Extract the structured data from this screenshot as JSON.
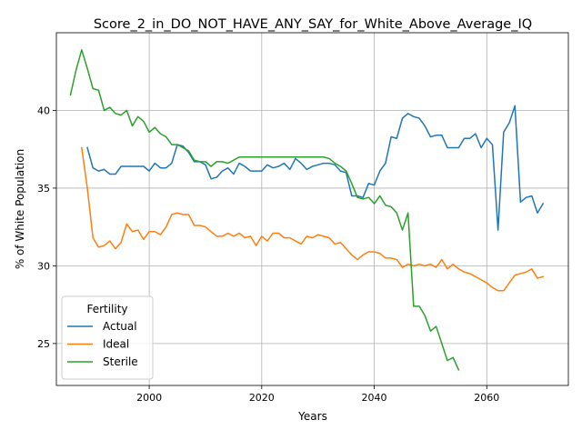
{
  "chart_data": {
    "type": "line",
    "title": "Score_2_in_DO_NOT_HAVE_ANY_SAY_for_White_Above_Average_IQ",
    "xlabel": "Years",
    "ylabel": "% of White Population",
    "xlim": [
      1983.5,
      2074.5
    ],
    "ylim": [
      22.3,
      45.0
    ],
    "xticks": [
      2000,
      2020,
      2040,
      2060
    ],
    "yticks": [
      25,
      30,
      35,
      40
    ],
    "grid": true,
    "legend": {
      "title": "Fertility",
      "position": "lower left"
    },
    "series": [
      {
        "name": "Actual",
        "color": "#1f77b4",
        "x": [
          1989,
          1990,
          1991,
          1992,
          1993,
          1994,
          1995,
          1996,
          1997,
          1998,
          1999,
          2000,
          2001,
          2002,
          2003,
          2004,
          2005,
          2006,
          2007,
          2008,
          2009,
          2010,
          2011,
          2012,
          2013,
          2014,
          2015,
          2016,
          2017,
          2018,
          2019,
          2020,
          2021,
          2022,
          2023,
          2024,
          2025,
          2026,
          2027,
          2028,
          2029,
          2030,
          2031,
          2032,
          2033,
          2034,
          2035,
          2036,
          2037,
          2038,
          2039,
          2040,
          2041,
          2042,
          2043,
          2044,
          2045,
          2046,
          2047,
          2048,
          2049,
          2050,
          2051,
          2052,
          2053,
          2054,
          2055,
          2056,
          2057,
          2058,
          2059,
          2060,
          2061,
          2062,
          2063,
          2064,
          2065,
          2066,
          2067,
          2068,
          2069,
          2070
        ],
        "y": [
          37.6,
          36.3,
          36.1,
          36.2,
          35.9,
          35.9,
          36.4,
          36.4,
          36.4,
          36.4,
          36.4,
          36.1,
          36.6,
          36.3,
          36.3,
          36.6,
          37.8,
          37.7,
          37.3,
          36.7,
          36.7,
          36.5,
          35.6,
          35.7,
          36.1,
          36.3,
          35.9,
          36.6,
          36.4,
          36.1,
          36.1,
          36.1,
          36.5,
          36.3,
          36.4,
          36.6,
          36.2,
          36.9,
          36.6,
          36.2,
          36.4,
          36.5,
          36.6,
          36.6,
          36.5,
          36.1,
          36.0,
          34.5,
          34.5,
          34.4,
          35.3,
          35.2,
          36.1,
          36.6,
          38.3,
          38.2,
          39.5,
          39.8,
          39.6,
          39.5,
          39.0,
          38.3,
          38.4,
          38.4,
          37.6,
          37.6,
          37.6,
          38.2,
          38.2,
          38.5,
          37.6,
          38.2,
          37.8,
          32.3,
          38.6,
          39.2,
          40.3,
          34.1,
          34.4,
          34.5,
          33.4,
          34.0
        ]
      },
      {
        "name": "Ideal",
        "color": "#ff7f0e",
        "x": [
          1988,
          1989,
          1990,
          1991,
          1992,
          1993,
          1994,
          1995,
          1996,
          1997,
          1998,
          1999,
          2000,
          2001,
          2002,
          2003,
          2004,
          2005,
          2006,
          2007,
          2008,
          2009,
          2010,
          2011,
          2012,
          2013,
          2014,
          2015,
          2016,
          2017,
          2018,
          2019,
          2020,
          2021,
          2022,
          2023,
          2024,
          2025,
          2026,
          2027,
          2028,
          2029,
          2030,
          2031,
          2032,
          2033,
          2034,
          2035,
          2036,
          2037,
          2038,
          2039,
          2040,
          2041,
          2042,
          2043,
          2044,
          2045,
          2046,
          2047,
          2048,
          2049,
          2050,
          2051,
          2052,
          2053,
          2054,
          2055,
          2056,
          2057,
          2058,
          2059,
          2060,
          2061,
          2062,
          2063,
          2064,
          2065,
          2066,
          2067,
          2068,
          2069,
          2070
        ],
        "y": [
          37.6,
          35.0,
          31.8,
          31.2,
          31.3,
          31.6,
          31.1,
          31.5,
          32.7,
          32.2,
          32.3,
          31.7,
          32.2,
          32.2,
          32.0,
          32.5,
          33.3,
          33.4,
          33.3,
          33.3,
          32.6,
          32.6,
          32.5,
          32.2,
          31.9,
          31.9,
          32.1,
          31.9,
          32.1,
          31.8,
          31.9,
          31.3,
          31.9,
          31.6,
          32.1,
          32.1,
          31.8,
          31.8,
          31.6,
          31.4,
          31.9,
          31.8,
          32.0,
          31.9,
          31.8,
          31.4,
          31.5,
          31.1,
          30.7,
          30.4,
          30.7,
          30.9,
          30.9,
          30.8,
          30.5,
          30.5,
          30.4,
          29.9,
          30.1,
          30.0,
          30.1,
          30.0,
          30.1,
          29.9,
          30.4,
          29.8,
          30.1,
          29.8,
          29.6,
          29.5,
          29.3,
          29.1,
          28.9,
          28.6,
          28.4,
          28.4,
          28.9,
          29.4,
          29.5,
          29.6,
          29.8,
          29.2,
          29.3
        ]
      },
      {
        "name": "Sterile",
        "color": "#2ca02c",
        "x": [
          1986,
          1987,
          1988,
          1989,
          1990,
          1991,
          1992,
          1993,
          1994,
          1995,
          1996,
          1997,
          1998,
          1999,
          2000,
          2001,
          2002,
          2003,
          2004,
          2005,
          2006,
          2007,
          2008,
          2009,
          2010,
          2011,
          2012,
          2013,
          2014,
          2015,
          2016,
          2017,
          2018,
          2019,
          2020,
          2021,
          2022,
          2023,
          2024,
          2025,
          2026,
          2027,
          2028,
          2029,
          2030,
          2031,
          2032,
          2033,
          2034,
          2035,
          2036,
          2037,
          2038,
          2039,
          2040,
          2041,
          2042,
          2043,
          2044,
          2045,
          2046,
          2047,
          2048,
          2049,
          2050,
          2051,
          2052,
          2053,
          2054,
          2055
        ],
        "y": [
          41.0,
          42.6,
          43.9,
          42.7,
          41.4,
          41.3,
          40.0,
          40.2,
          39.8,
          39.7,
          40.0,
          39.0,
          39.6,
          39.3,
          38.6,
          38.9,
          38.5,
          38.3,
          37.8,
          37.8,
          37.6,
          37.4,
          36.8,
          36.7,
          36.7,
          36.4,
          36.7,
          36.7,
          36.6,
          36.8,
          37.0,
          37.0,
          37.0,
          37.0,
          37.0,
          37.0,
          37.0,
          37.0,
          37.0,
          37.0,
          37.0,
          37.0,
          37.0,
          37.0,
          37.0,
          37.0,
          36.9,
          36.6,
          36.4,
          36.1,
          35.3,
          34.4,
          34.3,
          34.4,
          34.0,
          34.5,
          33.9,
          33.8,
          33.4,
          32.3,
          33.4,
          27.4,
          27.4,
          26.8,
          25.8,
          26.1,
          25.0,
          23.9,
          24.1,
          23.3
        ]
      }
    ]
  }
}
